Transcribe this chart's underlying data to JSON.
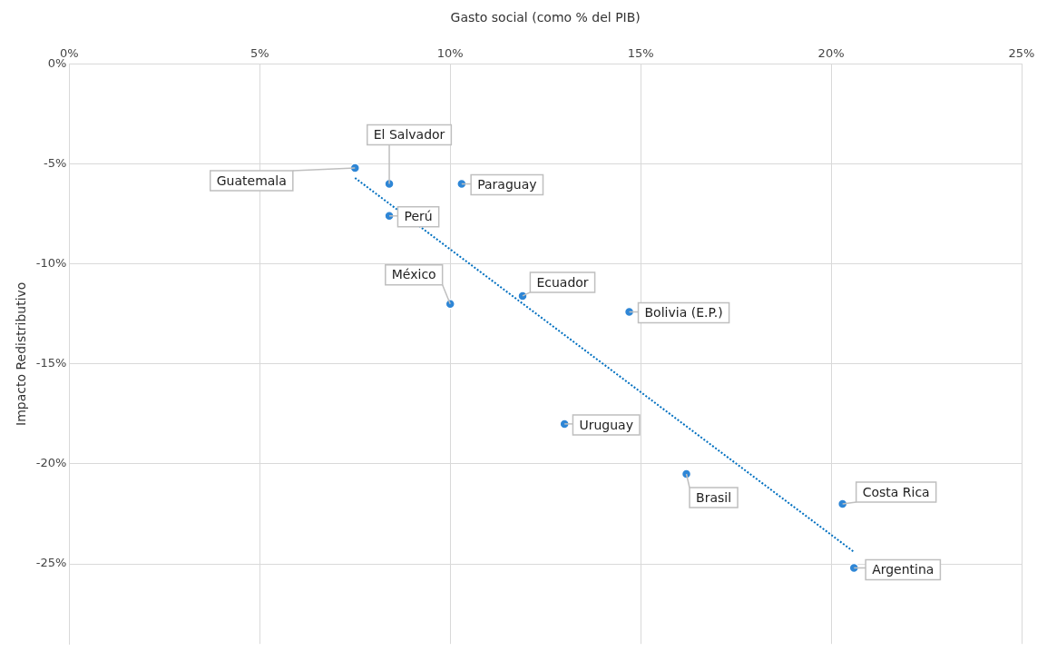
{
  "chart_data": {
    "type": "scatter",
    "xlabel": "Gasto social (como % del PIB)",
    "ylabel": "Impacto Redistributivo",
    "xlim": [
      0,
      25
    ],
    "xticks": [
      {
        "value": 0,
        "label": "0%"
      },
      {
        "value": 5,
        "label": "5%"
      },
      {
        "value": 10,
        "label": "10%"
      },
      {
        "value": 15,
        "label": "15%"
      },
      {
        "value": 20,
        "label": "20%"
      },
      {
        "value": 25,
        "label": "25%"
      }
    ],
    "ylim": [
      -29,
      0
    ],
    "yticks": [
      {
        "value": 0,
        "label": "0%"
      },
      {
        "value": -5,
        "label": "-5%"
      },
      {
        "value": -10,
        "label": "-10%"
      },
      {
        "value": -15,
        "label": "-15%"
      },
      {
        "value": -20,
        "label": "-20%"
      },
      {
        "value": -25,
        "label": "-25%"
      }
    ],
    "grid": true,
    "marker": "circle",
    "series": [
      {
        "type": "scatter",
        "color": "#2e86d6",
        "x": [
          7.5,
          8.4,
          10.3,
          8.4,
          10.0,
          11.9,
          14.7,
          13.0,
          16.2,
          20.3,
          20.6
        ],
        "values": [
          -5.2,
          -6.0,
          -6.0,
          -7.6,
          -12.0,
          -11.6,
          -12.4,
          -18.0,
          -20.5,
          -22.0,
          -25.2
        ]
      },
      {
        "type": "line",
        "color": "#0070c0",
        "line_style": "dotted",
        "marker": "none",
        "x": [
          7.5,
          20.6
        ],
        "values": [
          -5.7,
          -24.4
        ]
      }
    ],
    "annotations": [
      {
        "text": "Guatemala",
        "x": 7.5,
        "y": -5.2
      },
      {
        "text": "El Salvador",
        "x": 8.4,
        "y": -6.0
      },
      {
        "text": "Paraguay",
        "x": 10.3,
        "y": -6.0
      },
      {
        "text": "Perú",
        "x": 8.4,
        "y": -7.6
      },
      {
        "text": "México",
        "x": 10.0,
        "y": -12.0
      },
      {
        "text": "Ecuador",
        "x": 11.9,
        "y": -11.6
      },
      {
        "text": "Bolivia (E.P.)",
        "x": 14.7,
        "y": -12.4
      },
      {
        "text": "Uruguay",
        "x": 13.0,
        "y": -18.0
      },
      {
        "text": "Brasil",
        "x": 16.2,
        "y": -20.5
      },
      {
        "text": "Costa Rica",
        "x": 20.3,
        "y": -22.0
      },
      {
        "text": "Argentina",
        "x": 20.6,
        "y": -25.2
      }
    ]
  }
}
